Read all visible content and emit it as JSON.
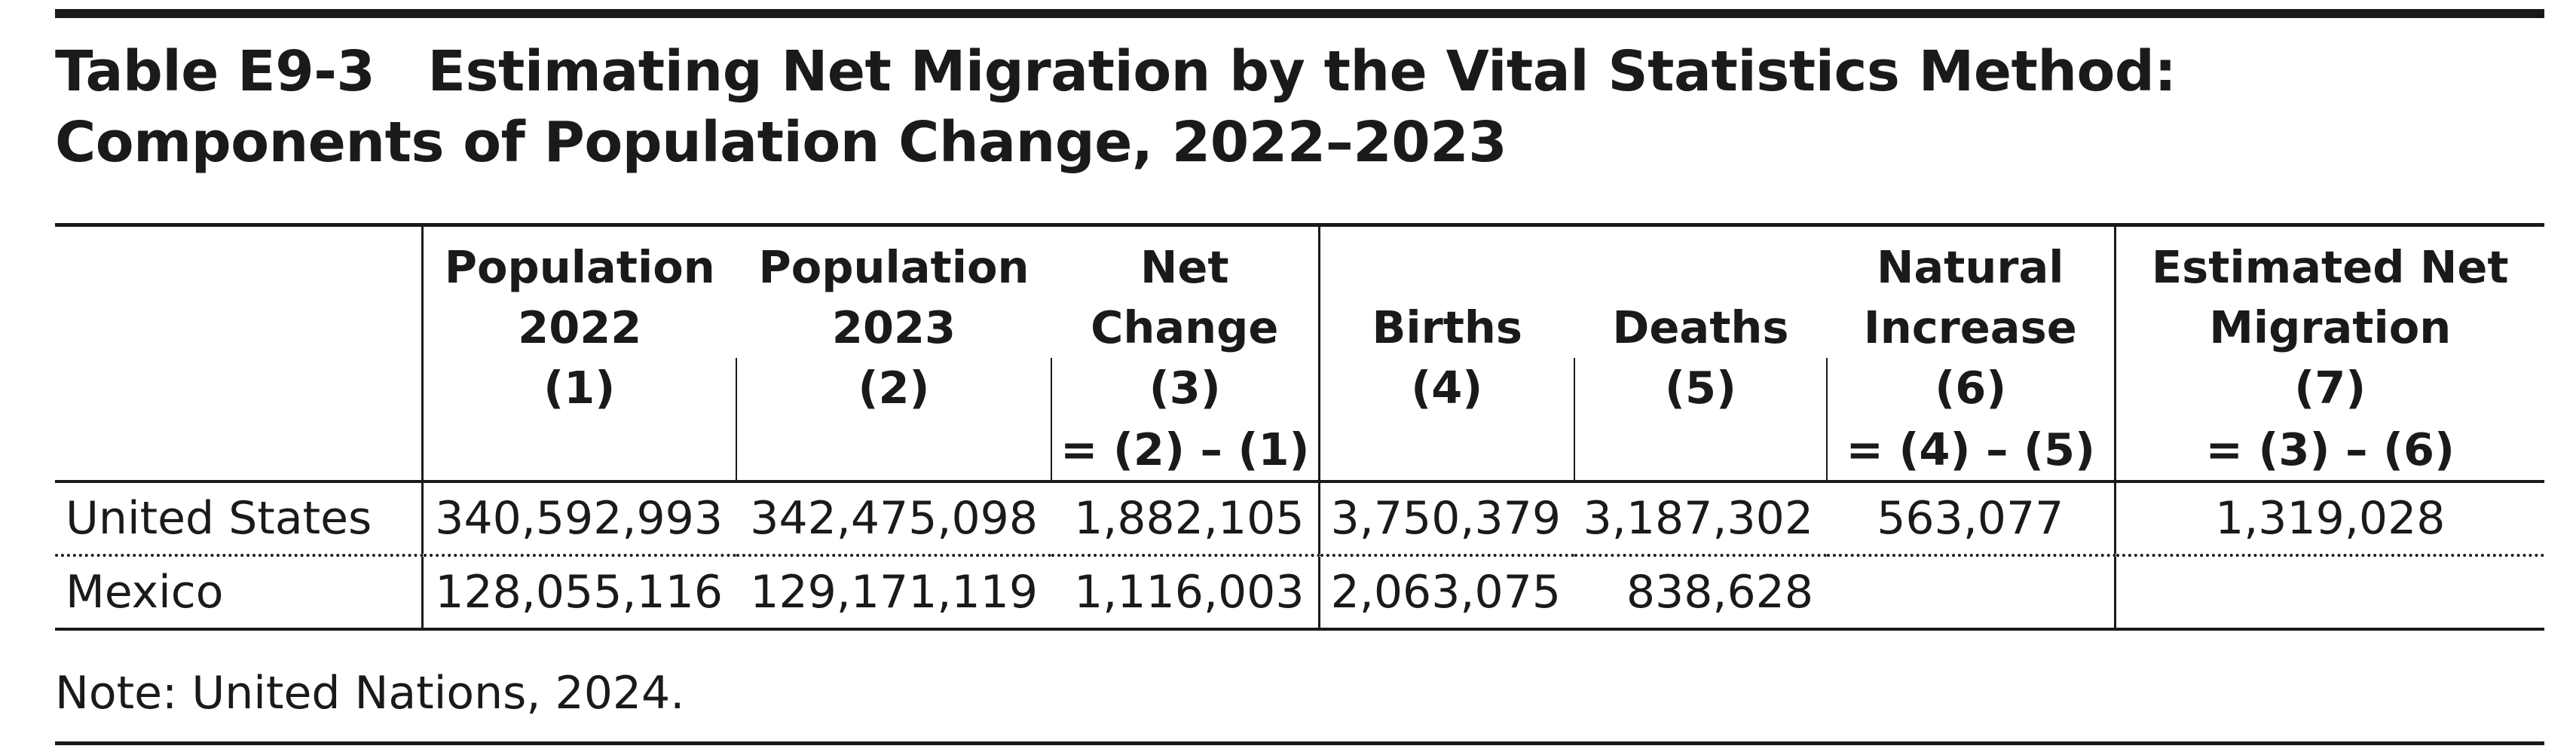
{
  "title": {
    "number": "Table E9-3",
    "line1": "Estimating Net Migration by the Vital Statistics Method:",
    "line2": "Components of Population Change, 2022–2023"
  },
  "columns": [
    {
      "label1": "",
      "label2": "",
      "number": "",
      "formula": ""
    },
    {
      "label1": "Population",
      "label2": "2022",
      "number": "(1)",
      "formula": ""
    },
    {
      "label1": "Population",
      "label2": "2023",
      "number": "(2)",
      "formula": ""
    },
    {
      "label1": "Net",
      "label2": "Change",
      "number": "(3)",
      "formula": "= (2) – (1)"
    },
    {
      "label1": "",
      "label2": "Births",
      "number": "(4)",
      "formula": ""
    },
    {
      "label1": "",
      "label2": "Deaths",
      "number": "(5)",
      "formula": ""
    },
    {
      "label1": "Natural",
      "label2": "Increase",
      "number": "(6)",
      "formula": "= (4) – (5)"
    },
    {
      "label1": "Estimated Net",
      "label2": "Migration",
      "number": "(7)",
      "formula": "= (3) – (6)"
    }
  ],
  "rows": [
    {
      "name": "United States",
      "pop2022": "340,592,993",
      "pop2023": "342,475,098",
      "net_change": "1,882,105",
      "births": "3,750,379",
      "deaths": "3,187,302",
      "natural_increase": "563,077",
      "net_migration": "1,319,028"
    },
    {
      "name": "Mexico",
      "pop2022": "128,055,116",
      "pop2023": "129,171,119",
      "net_change": "1,116,003",
      "births": "2,063,075",
      "deaths": "838,628",
      "natural_increase": "",
      "net_migration": ""
    }
  ],
  "note": "Note: United Nations, 2024."
}
